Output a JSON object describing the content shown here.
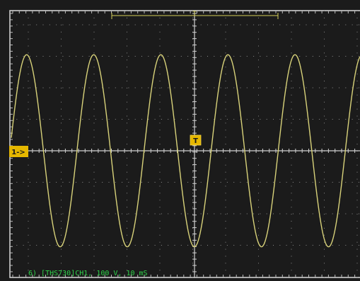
{
  "trigger_marker": {
    "label": "T"
  },
  "trigger_position_marker": {
    "label": "T"
  },
  "channel_marker": {
    "label": "1->"
  },
  "status_line": {
    "text": "6) [THS730]CH1, 100 V, 10 mS"
  },
  "colors": {
    "background": "#1b1b1b",
    "graticule_border": "#cfcfcf",
    "grid_dots": "#8a8a8a",
    "waveform": "#d8d27a",
    "marker_fill": "#e6b800",
    "status_text": "#2fd24a",
    "trigger_bracket": "#d6cf5a"
  },
  "waveform": {
    "type": "sine",
    "divisions_per_cycle": 2.04,
    "amplitude_divisions": 3.05,
    "phase_at_left_edge_divisions": -0.05
  },
  "grid": {
    "horizontal_divisions": 10,
    "vertical_divisions": 8
  }
}
